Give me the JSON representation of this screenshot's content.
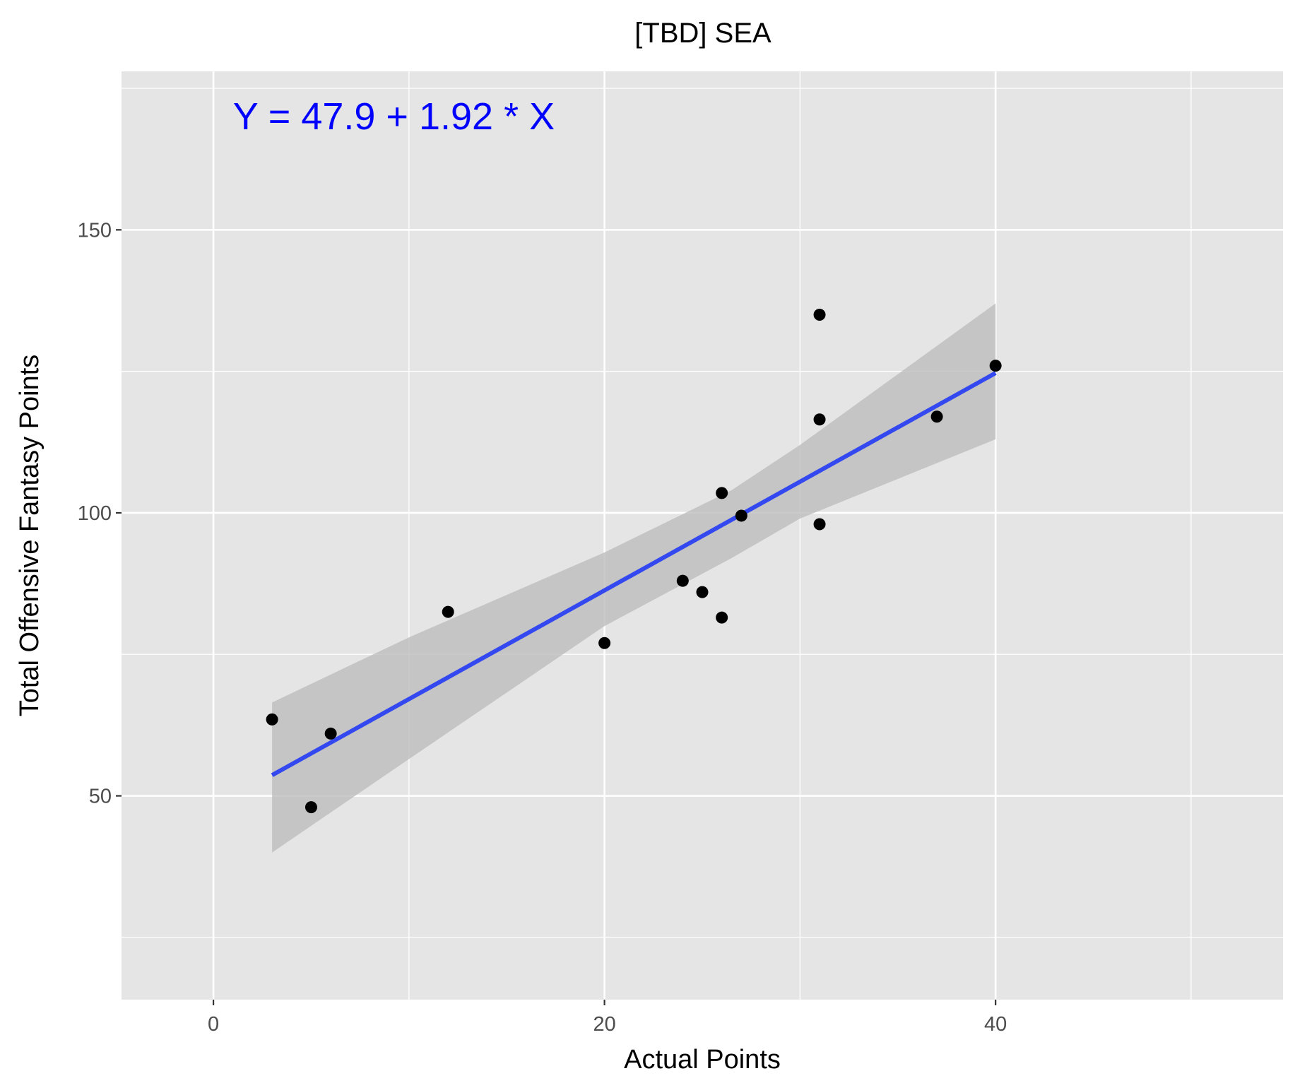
{
  "chart_data": {
    "type": "scatter",
    "title": "[TBD] SEA",
    "xlabel": "Actual Points",
    "ylabel": "Total Offensive Fantasy Points",
    "xlim": [
      -4.7,
      54.7
    ],
    "ylim": [
      14,
      178
    ],
    "x_ticks": [
      0,
      20,
      40
    ],
    "x_minor_ticks": [
      10,
      30,
      50
    ],
    "y_ticks": [
      50,
      100,
      150
    ],
    "y_minor_ticks": [
      25,
      75,
      125,
      175
    ],
    "x_tick_labels": [
      "0",
      "20",
      "40"
    ],
    "y_tick_labels": [
      "50",
      "100",
      "150"
    ],
    "grid": true,
    "panel_color": "#e5e5e5",
    "point_color": "#000000",
    "fit_line_color": "#3448f0",
    "band_color": "#bdbdbd",
    "annotation": {
      "text": "Y = 47.9 + 1.92 * X",
      "color": "#0000ff",
      "x": 1,
      "y": 170
    },
    "points": [
      {
        "x": 3,
        "y": 63.5
      },
      {
        "x": 5,
        "y": 48
      },
      {
        "x": 6,
        "y": 61
      },
      {
        "x": 12,
        "y": 82.5
      },
      {
        "x": 20,
        "y": 77
      },
      {
        "x": 24,
        "y": 88
      },
      {
        "x": 25,
        "y": 86
      },
      {
        "x": 26,
        "y": 103.5
      },
      {
        "x": 26,
        "y": 81.5
      },
      {
        "x": 27,
        "y": 99.5
      },
      {
        "x": 31,
        "y": 135
      },
      {
        "x": 31,
        "y": 116.5
      },
      {
        "x": 31,
        "y": 98
      },
      {
        "x": 37,
        "y": 117
      },
      {
        "x": 40,
        "y": 126
      }
    ],
    "fit": {
      "intercept": 47.9,
      "slope": 1.92,
      "x_range": [
        3,
        40
      ]
    },
    "confidence_band": {
      "x": [
        3,
        10,
        20,
        26.5,
        30,
        40
      ],
      "upper": [
        66.5,
        78,
        93,
        104,
        112,
        137
      ],
      "lower": [
        40,
        56.5,
        80,
        92,
        99,
        113
      ]
    }
  }
}
